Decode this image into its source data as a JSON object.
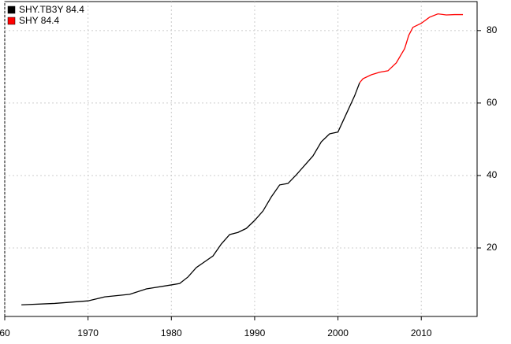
{
  "chart_data": {
    "type": "line",
    "xlim": [
      1960,
      2016.7
    ],
    "xticks": [
      {
        "value": 1960,
        "label": "60"
      },
      1970,
      1980,
      1990,
      2000,
      2010
    ],
    "ylim": [
      1.1,
      88
    ],
    "yticks": [
      20,
      40,
      60,
      80
    ],
    "grid": true,
    "legend": "top-left",
    "series": [
      {
        "name": "SHY.TB3Y 84.4",
        "color": "#000000",
        "x": [
          1962,
          1966,
          1970,
          1972,
          1975,
          1977,
          1980,
          1981,
          1982,
          1983,
          1985,
          1986,
          1987,
          1988,
          1989,
          1990,
          1991,
          1992,
          1993,
          1994,
          1995,
          1996,
          1997,
          1998,
          1999,
          2000,
          2001,
          2002,
          2002.6
        ],
        "values": [
          4.3,
          4.7,
          5.4,
          6.5,
          7.2,
          8.7,
          9.8,
          10.2,
          12,
          14.6,
          17.8,
          21.1,
          23.7,
          24.3,
          25.4,
          27.6,
          30.2,
          34.1,
          37.4,
          37.8,
          40.2,
          42.8,
          45.4,
          49.3,
          51.5,
          52,
          57,
          62,
          65.6
        ]
      },
      {
        "name": "SHY 84.4",
        "color": "#ff0000",
        "x": [
          2002.6,
          2003,
          2004,
          2005,
          2006,
          2007,
          2008,
          2008.5,
          2009,
          2010,
          2011,
          2012,
          2013,
          2014,
          2015
        ],
        "values": [
          65.6,
          66.7,
          67.8,
          68.5,
          68.9,
          71.1,
          75,
          78.7,
          80.9,
          82,
          83.7,
          84.6,
          84.3,
          84.4,
          84.4
        ]
      }
    ]
  }
}
